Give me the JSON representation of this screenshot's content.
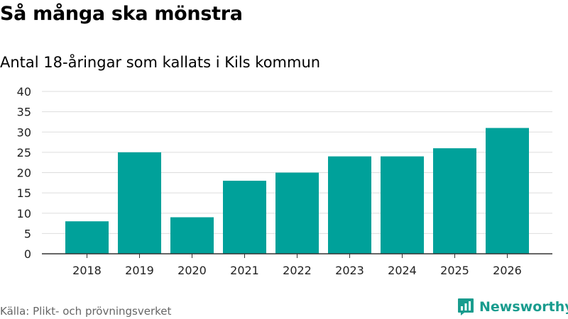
{
  "title": "Så många ska mönstra",
  "chart_data": {
    "type": "bar",
    "title": "Så många ska mönstra",
    "subtitle": "Antal 18-åringar som kallats i Kils kommun",
    "xlabel": "",
    "ylabel": "",
    "categories": [
      "2018",
      "2019",
      "2020",
      "2021",
      "2022",
      "2023",
      "2024",
      "2025",
      "2026"
    ],
    "values": [
      8,
      25,
      9,
      18,
      20,
      24,
      24,
      26,
      31
    ],
    "ylim": [
      0,
      40
    ],
    "yticks": [
      0,
      5,
      10,
      15,
      20,
      25,
      30,
      35,
      40
    ],
    "grid": true,
    "legend": "none"
  },
  "colors": {
    "bar": "#00a19a",
    "grid": "#dddddd",
    "axis": "#333333",
    "brand": "#199c8e",
    "source_text": "#666666"
  },
  "footer": {
    "source": "Källa: Plikt- och prövningsverket",
    "brand": "Newsworthy",
    "brand_icon": "bar-chart-logo-icon"
  }
}
